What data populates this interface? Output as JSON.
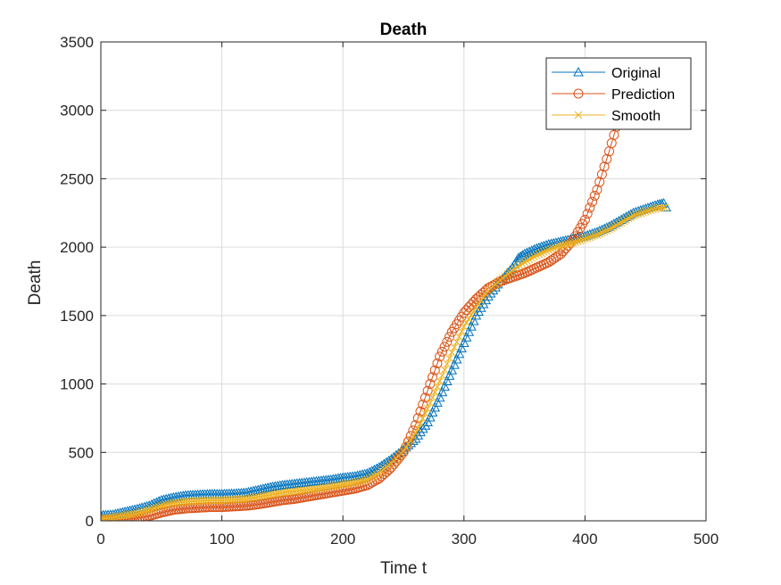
{
  "chart_data": {
    "type": "line",
    "title": "Death",
    "xlabel": "Time t",
    "ylabel": "Death",
    "xlim": [
      0,
      500
    ],
    "ylim": [
      0,
      3500
    ],
    "xticks": [
      "0",
      "100",
      "200",
      "300",
      "400",
      "500"
    ],
    "yticks": [
      "0",
      "500",
      "1000",
      "1500",
      "2000",
      "2500",
      "3000",
      "3500"
    ],
    "grid": true,
    "legend_position": "top-right",
    "series": [
      {
        "name": "Original",
        "color": "#0072BD",
        "marker": "triangle",
        "points": [
          [
            0,
            40
          ],
          [
            10,
            45
          ],
          [
            20,
            65
          ],
          [
            30,
            85
          ],
          [
            40,
            110
          ],
          [
            50,
            150
          ],
          [
            60,
            170
          ],
          [
            70,
            185
          ],
          [
            80,
            190
          ],
          [
            90,
            195
          ],
          [
            100,
            195
          ],
          [
            110,
            198
          ],
          [
            120,
            205
          ],
          [
            130,
            225
          ],
          [
            140,
            245
          ],
          [
            150,
            260
          ],
          [
            160,
            270
          ],
          [
            170,
            280
          ],
          [
            180,
            290
          ],
          [
            190,
            300
          ],
          [
            200,
            315
          ],
          [
            210,
            325
          ],
          [
            220,
            345
          ],
          [
            230,
            390
          ],
          [
            240,
            450
          ],
          [
            250,
            520
          ],
          [
            260,
            600
          ],
          [
            270,
            720
          ],
          [
            280,
            900
          ],
          [
            290,
            1100
          ],
          [
            300,
            1300
          ],
          [
            310,
            1500
          ],
          [
            320,
            1640
          ],
          [
            330,
            1750
          ],
          [
            340,
            1850
          ],
          [
            345,
            1920
          ],
          [
            350,
            1950
          ],
          [
            360,
            1990
          ],
          [
            370,
            2020
          ],
          [
            380,
            2040
          ],
          [
            390,
            2060
          ],
          [
            400,
            2080
          ],
          [
            410,
            2110
          ],
          [
            420,
            2150
          ],
          [
            430,
            2200
          ],
          [
            440,
            2250
          ],
          [
            450,
            2280
          ],
          [
            460,
            2310
          ],
          [
            465,
            2320
          ],
          [
            467,
            2290
          ]
        ]
      },
      {
        "name": "Prediction",
        "color": "#D95319",
        "marker": "circle",
        "points": [
          [
            0,
            0
          ],
          [
            10,
            5
          ],
          [
            20,
            10
          ],
          [
            30,
            20
          ],
          [
            40,
            35
          ],
          [
            50,
            60
          ],
          [
            60,
            80
          ],
          [
            70,
            90
          ],
          [
            80,
            95
          ],
          [
            90,
            100
          ],
          [
            100,
            100
          ],
          [
            110,
            105
          ],
          [
            120,
            110
          ],
          [
            130,
            120
          ],
          [
            140,
            135
          ],
          [
            150,
            150
          ],
          [
            160,
            160
          ],
          [
            170,
            175
          ],
          [
            180,
            190
          ],
          [
            190,
            205
          ],
          [
            200,
            220
          ],
          [
            210,
            235
          ],
          [
            220,
            260
          ],
          [
            230,
            310
          ],
          [
            240,
            390
          ],
          [
            250,
            500
          ],
          [
            260,
            700
          ],
          [
            270,
            950
          ],
          [
            280,
            1200
          ],
          [
            290,
            1380
          ],
          [
            300,
            1520
          ],
          [
            310,
            1620
          ],
          [
            320,
            1700
          ],
          [
            330,
            1750
          ],
          [
            340,
            1780
          ],
          [
            350,
            1810
          ],
          [
            360,
            1850
          ],
          [
            370,
            1890
          ],
          [
            380,
            1950
          ],
          [
            390,
            2050
          ],
          [
            400,
            2200
          ],
          [
            410,
            2420
          ],
          [
            420,
            2700
          ],
          [
            430,
            3000
          ],
          [
            438,
            3200
          ]
        ]
      },
      {
        "name": "Smooth",
        "color": "#EDB120",
        "marker": "x",
        "points": [
          [
            0,
            15
          ],
          [
            10,
            25
          ],
          [
            20,
            40
          ],
          [
            30,
            55
          ],
          [
            40,
            80
          ],
          [
            50,
            110
          ],
          [
            60,
            130
          ],
          [
            70,
            140
          ],
          [
            80,
            145
          ],
          [
            90,
            148
          ],
          [
            100,
            150
          ],
          [
            110,
            155
          ],
          [
            120,
            160
          ],
          [
            130,
            175
          ],
          [
            140,
            190
          ],
          [
            150,
            205
          ],
          [
            160,
            215
          ],
          [
            170,
            225
          ],
          [
            180,
            235
          ],
          [
            190,
            250
          ],
          [
            200,
            265
          ],
          [
            210,
            280
          ],
          [
            220,
            300
          ],
          [
            230,
            350
          ],
          [
            240,
            420
          ],
          [
            250,
            510
          ],
          [
            260,
            640
          ],
          [
            270,
            820
          ],
          [
            280,
            1020
          ],
          [
            290,
            1230
          ],
          [
            300,
            1420
          ],
          [
            310,
            1560
          ],
          [
            320,
            1680
          ],
          [
            330,
            1760
          ],
          [
            340,
            1830
          ],
          [
            350,
            1890
          ],
          [
            360,
            1940
          ],
          [
            370,
            1980
          ],
          [
            380,
            2010
          ],
          [
            390,
            2030
          ],
          [
            400,
            2060
          ],
          [
            410,
            2090
          ],
          [
            420,
            2130
          ],
          [
            430,
            2180
          ],
          [
            440,
            2230
          ],
          [
            450,
            2260
          ],
          [
            460,
            2285
          ],
          [
            466,
            2290
          ]
        ]
      }
    ]
  }
}
